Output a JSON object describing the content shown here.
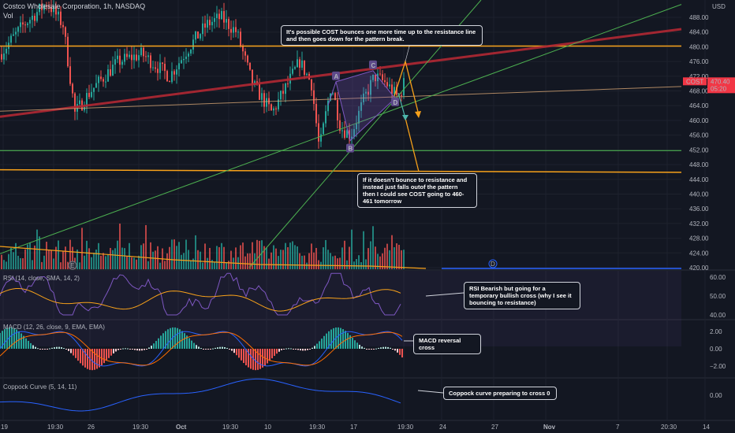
{
  "header": {
    "symbol_title": "Costco Wholesale Corporation, 1h, NASDAQ",
    "volume_label": "Vol",
    "currency": "USD"
  },
  "price_tag": {
    "ticker": "COST",
    "price": "470.40",
    "countdown": "05:20",
    "color": "#f23645"
  },
  "colors": {
    "background": "#131722",
    "up": "#26a69a",
    "down": "#ef5350",
    "resistance": "#f7a11a",
    "support": "#4caf50",
    "trendline": "#b22833",
    "pattern": "#7e57c2",
    "arrow": "#f7a11a",
    "arrow2": "#4db6ac"
  },
  "chart_data": [
    {
      "type": "candlestick",
      "title": "Costco Wholesale Corporation, 1h, NASDAQ",
      "ylim": [
        418,
        491
      ],
      "y_ticks": [
        "488.00",
        "484.00",
        "480.00",
        "476.00",
        "472.00",
        "468.00",
        "464.00",
        "460.00",
        "456.00",
        "452.00",
        "448.00",
        "444.00",
        "440.00",
        "436.00",
        "432.00",
        "428.00",
        "424.00",
        "420.00"
      ],
      "x_ticks": [
        "19",
        "19:30",
        "26",
        "19:30",
        "Oct",
        "19:30",
        "10",
        "19:30",
        "17",
        "19:30",
        "24",
        "27",
        "Nov",
        "7",
        "20:30",
        "14"
      ],
      "horizontal_levels": [
        {
          "name": "resistance",
          "value": 480.2
        },
        {
          "name": "support",
          "value": 451.8
        }
      ],
      "pattern_points": [
        {
          "label": "A",
          "value": 470.5
        },
        {
          "label": "B",
          "value": 454.5
        },
        {
          "label": "C",
          "value": 473.5
        },
        {
          "label": "D",
          "value": 466.0
        }
      ],
      "last_price": 470.4
    },
    {
      "type": "bar",
      "title": "Vol"
    },
    {
      "type": "line",
      "title": "RSI (14, close, SMA, 14, 2)",
      "ylim": [
        38,
        62
      ],
      "y_ticks": [
        "60.00",
        "50.00",
        "40.00"
      ],
      "series": [
        {
          "name": "RSI"
        },
        {
          "name": "SMA"
        }
      ]
    },
    {
      "type": "bar",
      "title": "MACD (12, 26, close, 9, EMA, EMA)",
      "ylim": [
        -3,
        3
      ],
      "y_ticks": [
        "2.00",
        "0.00",
        "−2.00"
      ],
      "series": [
        {
          "name": "MACD"
        },
        {
          "name": "Signal"
        },
        {
          "name": "Histogram"
        }
      ]
    },
    {
      "type": "line",
      "title": "Coppock Curve (5, 14, 11)",
      "y_ticks": [
        "0.00"
      ],
      "series": [
        {
          "name": "Coppock"
        }
      ]
    }
  ],
  "annotations": {
    "note1": "It's possible COST bounces one more time up to the resistance line and then goes down for the pattern break.",
    "note2": "If it doesn't bounce to resistance and instead just falls outof the pattern then I could see COST going to 460-461 tomorrow",
    "note3": "RSI Bearish but going for a temporary bullish cross (why I see it bouncing to resistance)",
    "note4": "MACD reversal cross",
    "note5": "Coppock curve preparing to cross 0"
  },
  "event_markers": {
    "earnings": "E",
    "dividend": "D"
  }
}
